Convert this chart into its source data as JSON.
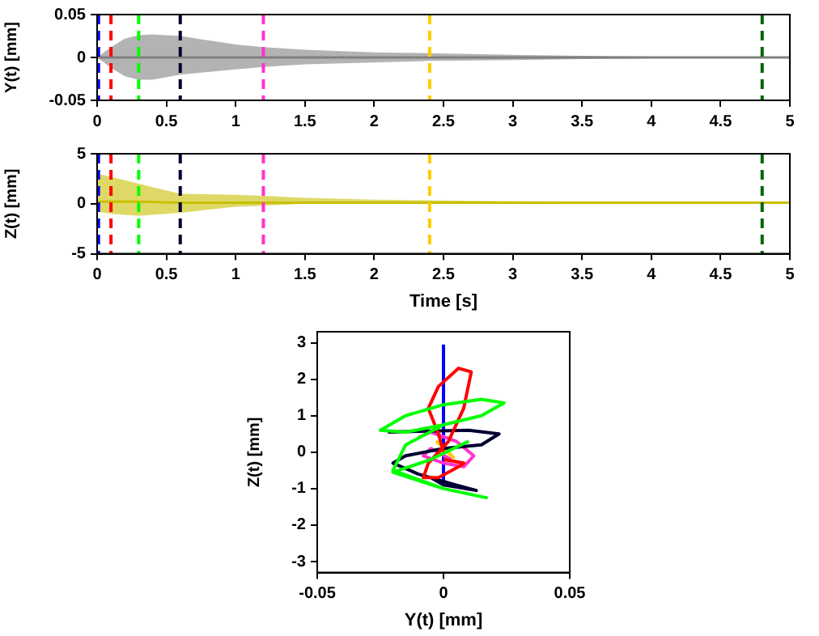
{
  "chart_data": [
    {
      "type": "line",
      "ylabel": "Y(t) [mm]",
      "x": [
        0,
        0.1,
        0.2,
        0.3,
        0.4,
        0.6,
        0.8,
        1,
        1.2,
        1.5,
        2,
        2.4,
        3,
        3.5,
        4,
        4.5,
        5
      ],
      "xlim": [
        0,
        5
      ],
      "xticks": [
        0,
        0.5,
        1,
        1.5,
        2,
        2.5,
        3,
        3.5,
        4,
        4.5,
        5
      ],
      "ylim": [
        -0.05,
        0.05
      ],
      "yticks": [
        -0.05,
        0,
        0.05
      ],
      "legend": false,
      "grid": false,
      "series": [
        {
          "color": "#808080",
          "values": [
            0,
            0,
            0,
            0,
            0,
            0,
            0,
            0,
            0,
            0,
            0,
            0,
            0,
            0,
            0,
            0,
            0
          ],
          "upper": [
            0,
            0.012,
            0.022,
            0.026,
            0.027,
            0.025,
            0.02,
            0.015,
            0.012,
            0.009,
            0.006,
            0.005,
            0.003,
            0.002,
            0.001,
            0.001,
            0.001
          ],
          "lower": [
            0,
            -0.012,
            -0.022,
            -0.026,
            -0.026,
            -0.02,
            -0.017,
            -0.014,
            -0.011,
            -0.008,
            -0.006,
            -0.004,
            -0.003,
            -0.002,
            -0.001,
            -0.001,
            -0.001
          ]
        }
      ],
      "ref_lines": [
        {
          "axis": "x",
          "value": 0.01,
          "color": "#0000ff",
          "line_style": "dashed"
        },
        {
          "axis": "x",
          "value": 0.1,
          "color": "#ff0000",
          "line_style": "dashed"
        },
        {
          "axis": "x",
          "value": 0.3,
          "color": "#00ff00",
          "line_style": "dashed"
        },
        {
          "axis": "x",
          "value": 0.6,
          "color": "#000033",
          "line_style": "dashed"
        },
        {
          "axis": "x",
          "value": 1.2,
          "color": "#ff33cc",
          "line_style": "dashed"
        },
        {
          "axis": "x",
          "value": 2.4,
          "color": "#ffcc00",
          "line_style": "dashed"
        },
        {
          "axis": "x",
          "value": 4.8,
          "color": "#006600",
          "line_style": "dashed"
        }
      ]
    },
    {
      "type": "line",
      "ylabel": "Z(t) [mm]",
      "xlabel": "Time [s]",
      "x": [
        0,
        0.1,
        0.3,
        0.6,
        1,
        1.2,
        1.5,
        2,
        2.4,
        3,
        4,
        5
      ],
      "xlim": [
        0,
        5
      ],
      "xticks": [
        0,
        0.5,
        1,
        1.5,
        2,
        2.5,
        3,
        3.5,
        4,
        4.5,
        5
      ],
      "ylim": [
        -5,
        5
      ],
      "yticks": [
        -5,
        0,
        5
      ],
      "legend": false,
      "grid": false,
      "series": [
        {
          "color": "#c8c000",
          "values": [
            0.2,
            0.2,
            0.2,
            0.1,
            0.1,
            0.1,
            0.1,
            0.1,
            0.1,
            0.1,
            0.1,
            0.1
          ],
          "upper": [
            3,
            2.7,
            2,
            1,
            0.9,
            0.8,
            0.6,
            0.4,
            0.35,
            0.25,
            0.2,
            0.15
          ],
          "lower": [
            -0.8,
            -1,
            -1.2,
            -0.9,
            -0.3,
            -0.2,
            0,
            0.05,
            0.05,
            0.1,
            0.1,
            0.1
          ]
        }
      ],
      "ref_lines": [
        {
          "axis": "x",
          "value": 0.01,
          "color": "#0000ff",
          "line_style": "dashed"
        },
        {
          "axis": "x",
          "value": 0.1,
          "color": "#ff0000",
          "line_style": "dashed"
        },
        {
          "axis": "x",
          "value": 0.3,
          "color": "#00ff00",
          "line_style": "dashed"
        },
        {
          "axis": "x",
          "value": 0.6,
          "color": "#000033",
          "line_style": "dashed"
        },
        {
          "axis": "x",
          "value": 1.2,
          "color": "#ff33cc",
          "line_style": "dashed"
        },
        {
          "axis": "x",
          "value": 2.4,
          "color": "#ffcc00",
          "line_style": "dashed"
        },
        {
          "axis": "x",
          "value": 4.8,
          "color": "#006600",
          "line_style": "dashed"
        }
      ]
    },
    {
      "type": "line",
      "xlabel": "Y(t) [mm]",
      "ylabel": "Z(t) [mm]",
      "xlim": [
        -0.05,
        0.05
      ],
      "xticks": [
        -0.05,
        0,
        0.05
      ],
      "ylim": [
        -3.3,
        3.3
      ],
      "yticks": [
        -3,
        -2,
        -1,
        0,
        1,
        2,
        3
      ],
      "legend": false,
      "grid": false,
      "series": [
        {
          "color": "#00ff00",
          "x": [
            0.01,
            -0.005,
            -0.02,
            0,
            0.017,
            0,
            -0.02,
            -0.015,
            0,
            0.015,
            0.024,
            0.015,
            0,
            -0.015,
            -0.025,
            -0.015,
            0,
            0.015,
            0.024
          ],
          "values": [
            0.3,
            -0.2,
            -0.55,
            -1,
            -1.25,
            -1,
            -0.5,
            0.2,
            0.75,
            1,
            1.35,
            1.45,
            1.3,
            1,
            0.6,
            0.55,
            0.75,
            1,
            1.35
          ]
        },
        {
          "color": "#ff0000",
          "x": [
            0,
            0.008,
            0.006,
            -0.002,
            -0.008,
            -0.006,
            0.002,
            0.008,
            0.011,
            0.006,
            -0.002,
            -0.006,
            -0.002,
            0
          ],
          "values": [
            -0.2,
            -0.3,
            -0.4,
            -0.7,
            -0.7,
            -0.3,
            0.3,
            1.2,
            2.2,
            2.3,
            1.8,
            1.2,
            0.5,
            0
          ]
        },
        {
          "color": "#000033",
          "x": [
            -0.005,
            0,
            0.013,
            0.005,
            -0.01,
            -0.02,
            -0.015,
            0,
            0.015,
            0.022,
            0.01,
            -0.022
          ],
          "values": [
            -0.7,
            -0.9,
            -1.05,
            -0.9,
            -0.6,
            -0.3,
            -0.1,
            0.1,
            0.2,
            0.5,
            0.6,
            0.55
          ]
        },
        {
          "color": "#ff33cc",
          "x": [
            0.003,
            -0.005,
            -0.008,
            0,
            0.008,
            0.012,
            0.005,
            -0.005,
            -0.01
          ],
          "values": [
            -0.2,
            0.1,
            -0.1,
            -0.3,
            -0.4,
            -0.1,
            0.3,
            0.55,
            0.4
          ]
        },
        {
          "color": "#ffcc00",
          "x": [
            -0.003,
            0.002,
            0.004,
            0
          ],
          "values": [
            0.3,
            0,
            -0.15,
            0.1
          ]
        },
        {
          "color": "#0000ff",
          "x": [
            0,
            0
          ],
          "values": [
            -0.9,
            2.95
          ]
        }
      ]
    }
  ]
}
